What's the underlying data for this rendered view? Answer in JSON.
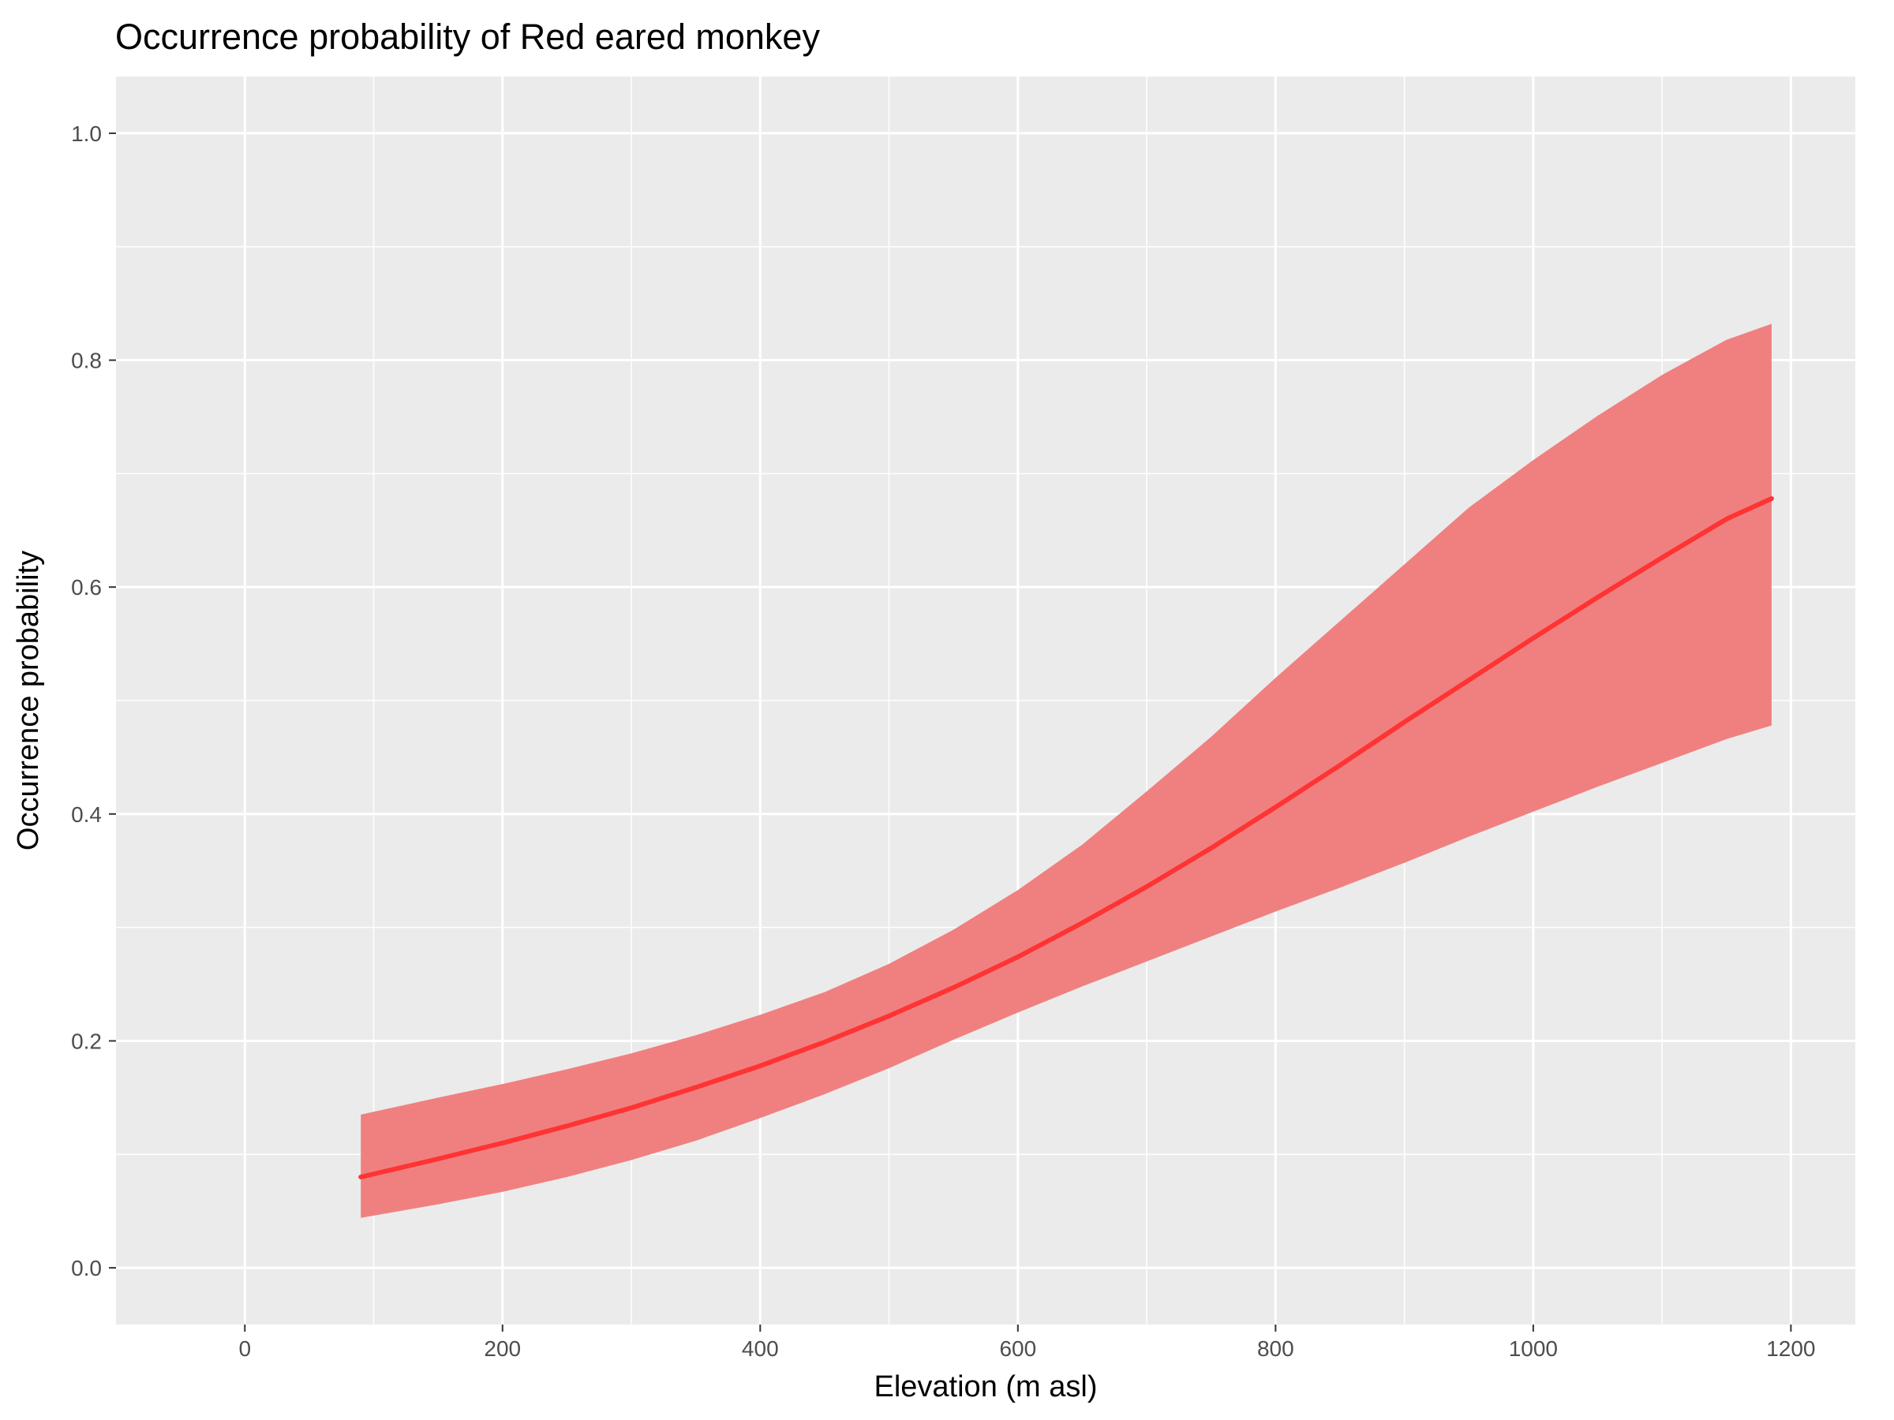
{
  "chart_data": {
    "type": "line",
    "title": "Occurrence probability of Red eared monkey",
    "xlabel": "Elevation (m asl)",
    "ylabel": "Occurrence probability",
    "xlim": [
      -100,
      1250
    ],
    "ylim": [
      -0.05,
      1.05
    ],
    "x_ticks": [
      0,
      200,
      400,
      600,
      800,
      1000,
      1200
    ],
    "y_ticks": [
      0.0,
      0.2,
      0.4,
      0.6,
      0.8,
      1.0
    ],
    "x_tick_labels": [
      "0",
      "200",
      "400",
      "600",
      "800",
      "1000",
      "1200"
    ],
    "y_tick_labels": [
      "0.0",
      "0.2",
      "0.4",
      "0.6",
      "0.8",
      "1.0"
    ],
    "grid": true,
    "legend": "none",
    "colors": {
      "panel_background": "#ebebeb",
      "grid": "#ffffff",
      "line": "#ff3333",
      "ribbon": "#f08080"
    },
    "series": [
      {
        "x": [
          90,
          150,
          200,
          250,
          300,
          350,
          400,
          450,
          500,
          550,
          600,
          650,
          700,
          750,
          800,
          850,
          900,
          950,
          1000,
          1050,
          1100,
          1150,
          1185
        ],
        "fit": [
          0.08,
          0.096,
          0.11,
          0.125,
          0.141,
          0.159,
          0.178,
          0.199,
          0.222,
          0.247,
          0.274,
          0.304,
          0.336,
          0.37,
          0.406,
          0.443,
          0.481,
          0.518,
          0.555,
          0.591,
          0.626,
          0.66,
          0.678
        ],
        "lower": [
          0.044,
          0.056,
          0.067,
          0.08,
          0.095,
          0.112,
          0.132,
          0.153,
          0.176,
          0.201,
          0.225,
          0.248,
          0.27,
          0.292,
          0.314,
          0.335,
          0.357,
          0.38,
          0.402,
          0.424,
          0.445,
          0.466,
          0.478
        ],
        "upper": [
          0.135,
          0.15,
          0.162,
          0.175,
          0.189,
          0.205,
          0.223,
          0.243,
          0.268,
          0.298,
          0.333,
          0.373,
          0.42,
          0.468,
          0.52,
          0.57,
          0.62,
          0.67,
          0.712,
          0.751,
          0.787,
          0.818,
          0.832
        ]
      }
    ]
  }
}
